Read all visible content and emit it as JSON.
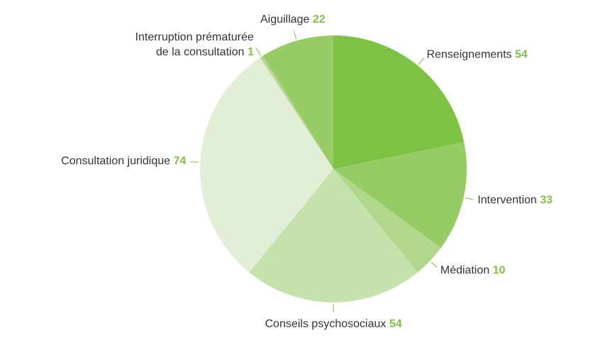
{
  "chart_data": {
    "type": "pie",
    "categories": [
      "Renseignements",
      "Intervention",
      "Médiation",
      "Conseils psychosociaux",
      "Consultation juridique",
      "Interruption prématurée\nde la consultation",
      "Aiguillage"
    ],
    "values": [
      54,
      33,
      10,
      54,
      74,
      1,
      22
    ],
    "colors": [
      "#7dc242",
      "#96cb65",
      "#b0d78c",
      "#c6e2ac",
      "#e2efd6",
      "#b3d891",
      "#96cb65"
    ]
  }
}
